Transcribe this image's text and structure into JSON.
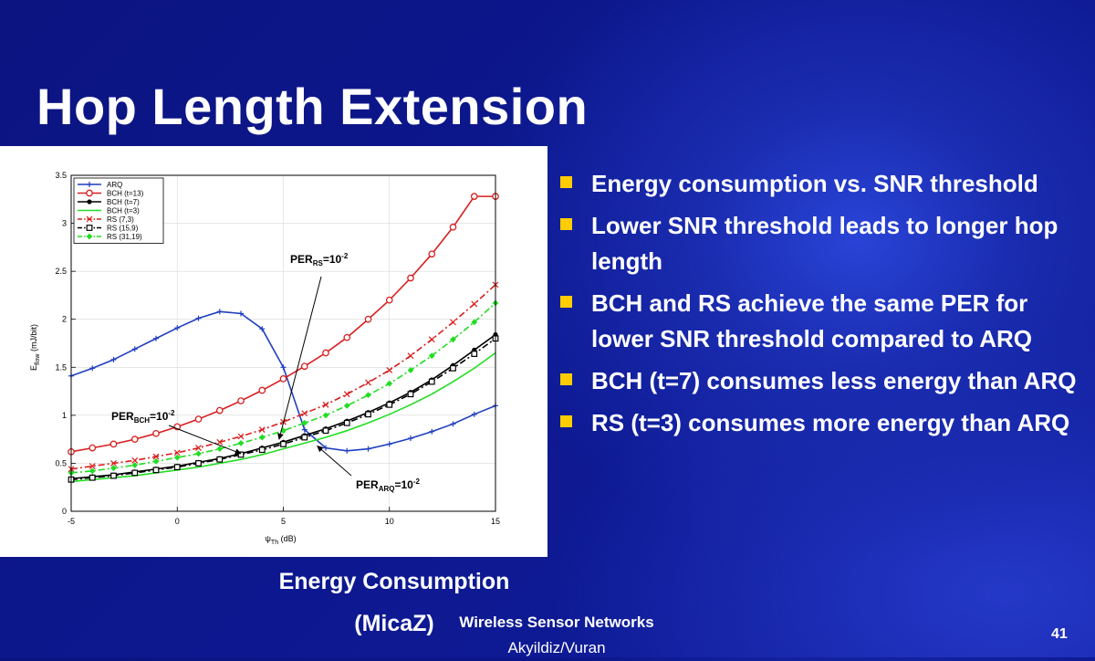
{
  "slide": {
    "title": "Hop Length Extension",
    "caption": [
      "Energy Consumption",
      "(MicaZ)"
    ],
    "bullets": [
      "Energy consumption vs. SNR threshold",
      "Lower SNR threshold leads to longer hop length",
      "BCH and RS achieve the same PER for lower SNR threshold compared to ARQ",
      "BCH (t=7) consumes less energy than ARQ",
      "RS (t=3) consumes more energy than ARQ"
    ],
    "footer": {
      "line1": "Wireless Sensor Networks",
      "line2": "Akyildiz/Vuran"
    },
    "page_number": "41",
    "colors": {
      "bullet": "#ffcc00",
      "background": "#0d1890"
    }
  },
  "chart_data": {
    "type": "line",
    "title": "",
    "xlabel": "ψ",
    "xlabel_sub": "Th",
    "xlabel_unit": " (dB)",
    "ylabel": "E",
    "ylabel_sub": "flow",
    "ylabel_unit": " (mJ/bit)",
    "xlim": [
      -5,
      15
    ],
    "ylim": [
      0,
      3.5
    ],
    "xticks": [
      -5,
      0,
      5,
      10,
      15
    ],
    "yticks": [
      0,
      0.5,
      1,
      1.5,
      2,
      2.5,
      3,
      3.5
    ],
    "legend_position": "top-left",
    "x": [
      -5,
      -4,
      -3,
      -2,
      -1,
      0,
      1,
      2,
      3,
      4,
      5,
      6,
      7,
      8,
      9,
      10,
      11,
      12,
      13,
      14,
      15
    ],
    "series": [
      {
        "name": "ARQ",
        "color": "#1f3fbf",
        "dash": "solid",
        "marker": "plus",
        "values": [
          1.41,
          1.49,
          1.58,
          1.69,
          1.8,
          1.91,
          2.01,
          2.08,
          2.06,
          1.9,
          1.5,
          0.85,
          0.66,
          0.63,
          0.65,
          0.7,
          0.76,
          0.83,
          0.91,
          1.01,
          1.1
        ]
      },
      {
        "name": "BCH (t=13)",
        "color": "#d81e1e",
        "dash": "solid",
        "marker": "circle",
        "values": [
          0.62,
          0.66,
          0.7,
          0.75,
          0.81,
          0.88,
          0.96,
          1.05,
          1.15,
          1.26,
          1.38,
          1.51,
          1.65,
          1.81,
          2.0,
          2.2,
          2.43,
          2.68,
          2.96,
          3.28,
          3.28
        ]
      },
      {
        "name": "BCH (t=7)",
        "color": "#000000",
        "dash": "solid",
        "marker": "dot",
        "values": [
          0.34,
          0.36,
          0.38,
          0.41,
          0.44,
          0.47,
          0.51,
          0.55,
          0.6,
          0.66,
          0.72,
          0.79,
          0.86,
          0.94,
          1.03,
          1.13,
          1.24,
          1.37,
          1.52,
          1.68,
          1.84
        ]
      },
      {
        "name": "BCH (t=3)",
        "color": "#22dd22",
        "dash": "solid",
        "marker": "none",
        "values": [
          0.31,
          0.33,
          0.35,
          0.37,
          0.4,
          0.43,
          0.46,
          0.5,
          0.54,
          0.59,
          0.65,
          0.71,
          0.77,
          0.84,
          0.92,
          1.01,
          1.11,
          1.22,
          1.35,
          1.49,
          1.65
        ]
      },
      {
        "name": "RS (7,3)",
        "color": "#d81e1e",
        "dash": "dashdot",
        "marker": "x",
        "values": [
          0.44,
          0.47,
          0.5,
          0.53,
          0.57,
          0.61,
          0.66,
          0.72,
          0.78,
          0.85,
          0.93,
          1.02,
          1.11,
          1.22,
          1.34,
          1.47,
          1.62,
          1.79,
          1.97,
          2.16,
          2.36
        ]
      },
      {
        "name": "RS (15,9)",
        "color": "#000000",
        "dash": "dashdot",
        "marker": "square",
        "values": [
          0.33,
          0.35,
          0.37,
          0.4,
          0.43,
          0.46,
          0.5,
          0.54,
          0.59,
          0.64,
          0.7,
          0.77,
          0.84,
          0.92,
          1.01,
          1.11,
          1.22,
          1.35,
          1.49,
          1.64,
          1.8
        ]
      },
      {
        "name": "RS (31,19)",
        "color": "#22dd22",
        "dash": "dashdot",
        "marker": "diamond",
        "values": [
          0.4,
          0.42,
          0.45,
          0.48,
          0.52,
          0.56,
          0.6,
          0.65,
          0.71,
          0.77,
          0.84,
          0.92,
          1.0,
          1.1,
          1.21,
          1.33,
          1.47,
          1.62,
          1.79,
          1.97,
          2.17
        ]
      }
    ],
    "annotations": [
      {
        "base": "PER",
        "sub": "RS",
        "text": "=10",
        "sup": "-2",
        "arrow_to": [
          4.8,
          0.75
        ]
      },
      {
        "base": "PER",
        "sub": "BCH",
        "text": "=10",
        "sup": "-2",
        "arrow_to": [
          3.0,
          0.6
        ]
      },
      {
        "base": "PER",
        "sub": "ARQ",
        "text": "=10",
        "sup": "-2",
        "arrow_to": [
          6.6,
          0.68
        ]
      }
    ]
  }
}
